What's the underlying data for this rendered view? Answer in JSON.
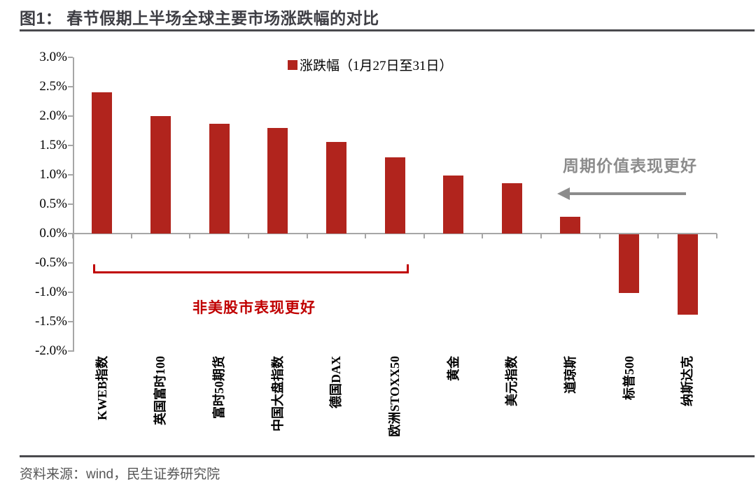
{
  "page": {
    "title": "图1： 春节假期上半场全球主要市场涨跌幅的对比",
    "source": "资料来源：wind，民生证券研究院"
  },
  "colors": {
    "bar_red": "#b1241d",
    "annotation_red": "#c00000",
    "annotation_gray": "#8c8c8c",
    "axis_gray": "#a6a6a6",
    "title_dark": "#3e3e44"
  },
  "chart_data": {
    "type": "bar",
    "title": "图1： 春节假期上半场全球主要市场涨跌幅的对比",
    "legend": [
      {
        "label": "涨跌幅（1月27日至31日）",
        "color": "#b1241d",
        "position": "top-center"
      }
    ],
    "categories": [
      "KWEB指数",
      "英国富时100",
      "富时50期货",
      "中国大盘指数",
      "德国DAX",
      "欧洲STOXX50",
      "黄金",
      "美元指数",
      "道琼斯",
      "标普500",
      "纳斯达克"
    ],
    "values": [
      2.4,
      2.0,
      1.87,
      1.8,
      1.56,
      1.3,
      0.99,
      0.86,
      0.28,
      -1.0,
      -1.37
    ],
    "unit": "%",
    "xlabel": "",
    "ylabel": "",
    "ylim": [
      -2.0,
      3.0
    ],
    "ytick_step": 0.5,
    "ytick_labels": [
      "3.0%",
      "2.5%",
      "2.0%",
      "1.5%",
      "1.0%",
      "0.5%",
      "0.0%",
      "-0.5%",
      "-1.0%",
      "-1.5%",
      "-2.0%"
    ],
    "grid": false,
    "bar_color": "#b1241d",
    "annotations": [
      {
        "text": "周期价值表现更好",
        "color": "#8c8c8c",
        "shape": "left-arrow",
        "location": "upper-right over 道琼斯/标普500 area"
      },
      {
        "text": "非美股市表现更好",
        "color": "#c00000",
        "shape": "bottom-bracket",
        "location": "bracket spanning KWEB指数 through 欧洲STOXX50"
      }
    ]
  }
}
